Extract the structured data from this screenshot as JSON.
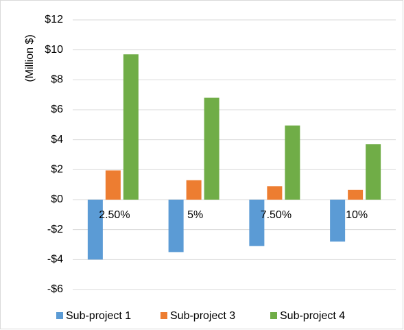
{
  "chart_data": {
    "type": "bar",
    "y_label": "(Million $)",
    "categories": [
      "2.50%",
      "5%",
      "7.50%",
      "10%"
    ],
    "series": [
      {
        "name": "Sub-project 1",
        "color": "#5b9bd5",
        "values": [
          -4,
          -3.5,
          -3.1,
          -2.8
        ]
      },
      {
        "name": "Sub-project 3",
        "color": "#ed7d31",
        "values": [
          1.95,
          1.3,
          0.9,
          0.65
        ]
      },
      {
        "name": "Sub-project 4",
        "color": "#70ad47",
        "values": [
          9.7,
          6.8,
          4.95,
          3.7
        ]
      }
    ],
    "ylim": [
      -6,
      12
    ],
    "yticks": [
      {
        "value": -6,
        "label": "-$6"
      },
      {
        "value": -4,
        "label": "-$4"
      },
      {
        "value": -2,
        "label": "-$2"
      },
      {
        "value": 0,
        "label": "$0"
      },
      {
        "value": 2,
        "label": "$2"
      },
      {
        "value": 4,
        "label": "$4"
      },
      {
        "value": 6,
        "label": "$6"
      },
      {
        "value": 8,
        "label": "$8"
      },
      {
        "value": 10,
        "label": "$10"
      },
      {
        "value": 12,
        "label": "$12"
      }
    ],
    "grid": true,
    "legend": "bottom"
  }
}
